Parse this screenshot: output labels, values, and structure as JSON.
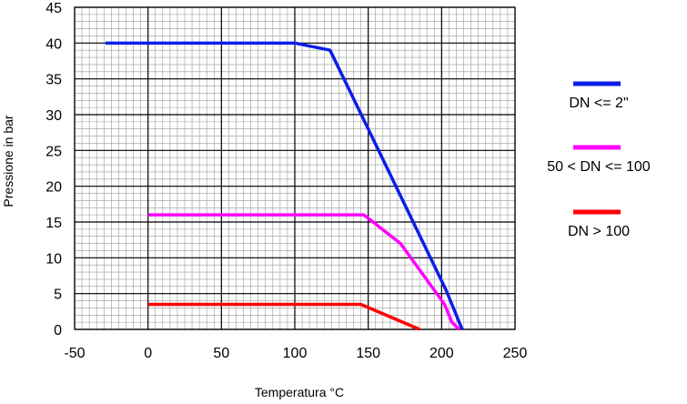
{
  "chart_data": {
    "type": "line",
    "title": "",
    "xlabel": "Temperatura °C",
    "ylabel": "Pressione in bar",
    "xlim": [
      -50,
      250
    ],
    "ylim": [
      0,
      45
    ],
    "xticks": [
      -50,
      0,
      50,
      100,
      150,
      200,
      250
    ],
    "yticks": [
      0,
      5,
      10,
      15,
      20,
      25,
      30,
      35,
      40,
      45
    ],
    "grid": true,
    "legend_position": "right",
    "series": [
      {
        "name": "DN <= 2\"",
        "color": "#0b1ee8",
        "points": [
          [
            -29,
            40
          ],
          [
            100,
            40
          ],
          [
            124,
            39
          ],
          [
            150,
            28
          ],
          [
            203,
            5.5
          ],
          [
            214,
            0
          ]
        ]
      },
      {
        "name": "50 < DN <= 100",
        "color": "#ff00ff",
        "points": [
          [
            0,
            16
          ],
          [
            147,
            16
          ],
          [
            172,
            12
          ],
          [
            202,
            3.5
          ],
          [
            207,
            1
          ],
          [
            212,
            0
          ]
        ]
      },
      {
        "name": "DN > 100",
        "color": "#ff0000",
        "points": [
          [
            0,
            3.5
          ],
          [
            145,
            3.5
          ],
          [
            185,
            0
          ]
        ]
      }
    ]
  }
}
